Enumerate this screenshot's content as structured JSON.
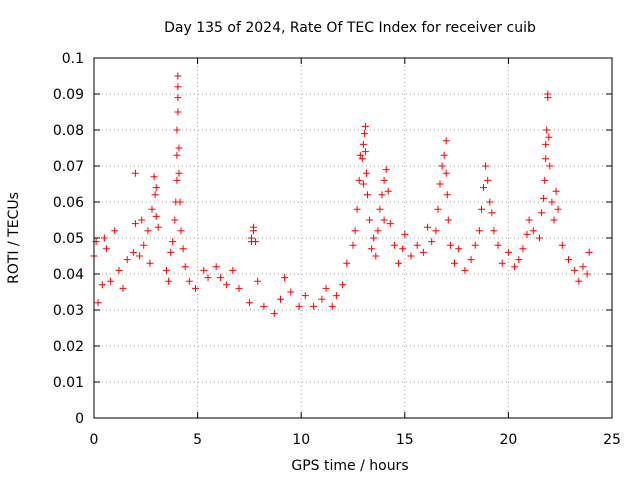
{
  "chart_data": {
    "type": "scatter",
    "title": "Day 135 of 2024, Rate Of TEC Index for receiver cuib",
    "xlabel": "GPS time / hours",
    "ylabel": "ROTI / TECUs",
    "xlim": [
      0,
      25
    ],
    "ylim": [
      0,
      0.1
    ],
    "xticks": [
      0,
      5,
      10,
      15,
      20,
      25
    ],
    "xtick_labels": [
      "0",
      "5",
      "10",
      "15",
      "20",
      "25"
    ],
    "yticks": [
      0,
      0.01,
      0.02,
      0.03,
      0.04,
      0.05,
      0.06,
      0.07,
      0.08,
      0.09,
      0.1
    ],
    "ytick_labels": [
      "0",
      "0.01",
      "0.02",
      "0.03",
      "0.04",
      "0.05",
      "0.06",
      "0.07",
      "0.08",
      "0.09",
      "0.1"
    ],
    "grid": true,
    "marker": "+",
    "color": "#ff0000",
    "series": [
      {
        "points": [
          [
            0.0,
            0.045
          ],
          [
            0.1,
            0.049
          ],
          [
            0.2,
            0.032
          ],
          [
            0.4,
            0.037
          ],
          [
            0.5,
            0.05
          ],
          [
            0.6,
            0.047
          ],
          [
            0.8,
            0.038
          ],
          [
            1.0,
            0.052
          ],
          [
            1.2,
            0.041
          ],
          [
            1.4,
            0.036
          ],
          [
            1.6,
            0.044
          ],
          [
            1.9,
            0.046
          ],
          [
            2.0,
            0.054
          ],
          [
            2.0,
            0.068
          ],
          [
            2.2,
            0.045
          ],
          [
            2.3,
            0.055
          ],
          [
            2.4,
            0.048
          ],
          [
            2.6,
            0.052
          ],
          [
            2.7,
            0.043
          ],
          [
            2.8,
            0.058
          ],
          [
            2.9,
            0.067
          ],
          [
            2.95,
            0.062
          ],
          [
            3.0,
            0.064
          ],
          [
            3.0,
            0.056
          ],
          [
            3.1,
            0.053
          ],
          [
            3.5,
            0.041
          ],
          [
            3.6,
            0.038
          ],
          [
            3.7,
            0.046
          ],
          [
            3.8,
            0.049
          ],
          [
            3.9,
            0.055
          ],
          [
            3.95,
            0.06
          ],
          [
            4.0,
            0.066
          ],
          [
            4.0,
            0.073
          ],
          [
            4.0,
            0.08
          ],
          [
            4.05,
            0.085
          ],
          [
            4.05,
            0.089
          ],
          [
            4.05,
            0.092
          ],
          [
            4.05,
            0.095
          ],
          [
            4.1,
            0.068
          ],
          [
            4.1,
            0.075
          ],
          [
            4.15,
            0.06
          ],
          [
            4.2,
            0.052
          ],
          [
            4.3,
            0.047
          ],
          [
            4.4,
            0.042
          ],
          [
            4.6,
            0.038
          ],
          [
            4.9,
            0.036
          ],
          [
            5.3,
            0.041
          ],
          [
            5.5,
            0.039
          ],
          [
            5.9,
            0.042
          ],
          [
            6.1,
            0.039
          ],
          [
            6.4,
            0.037
          ],
          [
            6.7,
            0.041
          ],
          [
            7.0,
            0.036
          ],
          [
            7.5,
            0.032
          ],
          [
            7.6,
            0.049
          ],
          [
            7.6,
            0.05
          ],
          [
            7.7,
            0.053
          ],
          [
            7.7,
            0.052
          ],
          [
            7.8,
            0.049
          ],
          [
            7.9,
            0.038
          ],
          [
            8.2,
            0.031
          ],
          [
            8.7,
            0.029
          ],
          [
            9.0,
            0.033
          ],
          [
            9.2,
            0.039
          ],
          [
            9.5,
            0.035
          ],
          [
            9.9,
            0.031
          ],
          [
            10.2,
            0.034
          ],
          [
            10.6,
            0.031
          ],
          [
            11.0,
            0.033
          ],
          [
            11.2,
            0.036
          ],
          [
            11.5,
            0.031
          ],
          [
            11.7,
            0.034
          ],
          [
            12.0,
            0.037
          ],
          [
            12.2,
            0.043
          ],
          [
            12.5,
            0.048
          ],
          [
            12.6,
            0.052
          ],
          [
            12.7,
            0.058
          ],
          [
            12.8,
            0.066
          ],
          [
            12.85,
            0.073
          ],
          [
            12.95,
            0.072
          ],
          [
            13.0,
            0.065
          ],
          [
            13.0,
            0.076
          ],
          [
            13.05,
            0.079
          ],
          [
            13.1,
            0.081
          ],
          [
            13.1,
            0.074
          ],
          [
            13.15,
            0.068
          ],
          [
            13.2,
            0.062
          ],
          [
            13.3,
            0.055
          ],
          [
            13.4,
            0.047
          ],
          [
            13.5,
            0.05
          ],
          [
            13.6,
            0.045
          ],
          [
            13.7,
            0.052
          ],
          [
            13.8,
            0.058
          ],
          [
            13.9,
            0.062
          ],
          [
            14.0,
            0.055
          ],
          [
            14.0,
            0.066
          ],
          [
            14.1,
            0.069
          ],
          [
            14.2,
            0.063
          ],
          [
            14.3,
            0.054
          ],
          [
            14.5,
            0.048
          ],
          [
            14.7,
            0.043
          ],
          [
            14.9,
            0.047
          ],
          [
            15.0,
            0.051
          ],
          [
            15.3,
            0.045
          ],
          [
            15.6,
            0.048
          ],
          [
            15.9,
            0.046
          ],
          [
            16.1,
            0.053
          ],
          [
            16.3,
            0.049
          ],
          [
            16.5,
            0.052
          ],
          [
            16.6,
            0.058
          ],
          [
            16.7,
            0.065
          ],
          [
            16.8,
            0.07
          ],
          [
            16.9,
            0.073
          ],
          [
            17.0,
            0.077
          ],
          [
            17.0,
            0.068
          ],
          [
            17.05,
            0.062
          ],
          [
            17.1,
            0.055
          ],
          [
            17.2,
            0.048
          ],
          [
            17.4,
            0.043
          ],
          [
            17.6,
            0.047
          ],
          [
            17.9,
            0.041
          ],
          [
            18.2,
            0.044
          ],
          [
            18.4,
            0.048
          ],
          [
            18.6,
            0.052
          ],
          [
            18.7,
            0.058
          ],
          [
            18.8,
            0.064
          ],
          [
            18.9,
            0.07
          ],
          [
            19.0,
            0.066
          ],
          [
            19.1,
            0.06
          ],
          [
            19.2,
            0.057
          ],
          [
            19.3,
            0.052
          ],
          [
            19.5,
            0.048
          ],
          [
            19.7,
            0.043
          ],
          [
            20.0,
            0.046
          ],
          [
            20.3,
            0.042
          ],
          [
            20.5,
            0.044
          ],
          [
            20.7,
            0.047
          ],
          [
            20.9,
            0.051
          ],
          [
            21.0,
            0.055
          ],
          [
            21.2,
            0.052
          ],
          [
            21.5,
            0.05
          ],
          [
            21.6,
            0.057
          ],
          [
            21.7,
            0.061
          ],
          [
            21.75,
            0.066
          ],
          [
            21.8,
            0.072
          ],
          [
            21.8,
            0.076
          ],
          [
            21.85,
            0.08
          ],
          [
            21.9,
            0.089
          ],
          [
            21.9,
            0.09
          ],
          [
            21.95,
            0.078
          ],
          [
            22.0,
            0.07
          ],
          [
            22.1,
            0.06
          ],
          [
            22.2,
            0.055
          ],
          [
            22.3,
            0.063
          ],
          [
            22.4,
            0.058
          ],
          [
            22.6,
            0.048
          ],
          [
            22.9,
            0.044
          ],
          [
            23.2,
            0.041
          ],
          [
            23.4,
            0.038
          ],
          [
            23.6,
            0.042
          ],
          [
            23.8,
            0.04
          ],
          [
            23.9,
            0.046
          ]
        ]
      }
    ]
  }
}
